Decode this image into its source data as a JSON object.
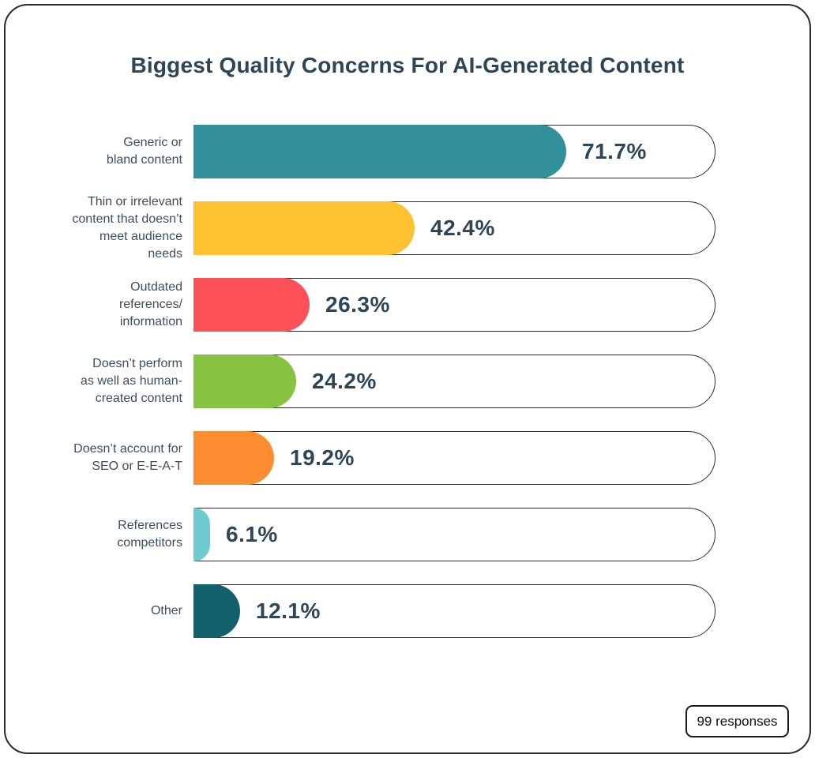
{
  "chart_data": {
    "type": "bar",
    "orientation": "horizontal",
    "title": "Biggest Quality Concerns For AI-Generated Content",
    "xlim": [
      0,
      100
    ],
    "grid": false,
    "legend": false,
    "annotation": "99 responses",
    "categories": [
      "Generic or bland content",
      "Thin or irrelevant content that doesn’t meet audience needs",
      "Outdated references/information",
      "Doesn’t perform as well as human-created content",
      "Doesn’t account for SEO or E-E-A-T",
      "References competitors",
      "Other"
    ],
    "values": [
      71.7,
      42.4,
      26.3,
      24.2,
      19.2,
      6.1,
      12.1
    ],
    "rows": [
      {
        "label": "Generic or bland content",
        "display_label": "Generic or\nbland content",
        "value": 71.7,
        "value_label": "71.7%",
        "color": "#31909a",
        "fill_fraction": 0.714
      },
      {
        "label": "Thin or irrelevant content that doesn’t meet audience needs",
        "display_label": "Thin or irrelevant\ncontent that doesn’t\nmeet audience\nneeds",
        "value": 42.4,
        "value_label": "42.4%",
        "color": "#fec12f",
        "fill_fraction": 0.424
      },
      {
        "label": "Outdated references/information",
        "display_label": "Outdated\nreferences/\ninformation",
        "value": 26.3,
        "value_label": "26.3%",
        "color": "#fc5059",
        "fill_fraction": 0.222
      },
      {
        "label": "Doesn’t perform as well as human-created content",
        "display_label": "Doesn’t perform\nas well as human-\ncreated content",
        "value": 24.2,
        "value_label": "24.2%",
        "color": "#85c340",
        "fill_fraction": 0.197
      },
      {
        "label": "Doesn’t account for SEO or E-E-A-T",
        "display_label": "Doesn’t account for\nSEO or E-E-A-T",
        "value": 19.2,
        "value_label": "19.2%",
        "color": "#fb8d30",
        "fill_fraction": 0.154
      },
      {
        "label": "References competitors",
        "display_label": "References\ncompetitors",
        "value": 6.1,
        "value_label": "6.1%",
        "color": "#70cbd1",
        "fill_fraction": 0.032
      },
      {
        "label": "Other",
        "display_label": "Other",
        "value": 12.1,
        "value_label": "12.1%",
        "color": "#12606b",
        "fill_fraction": 0.089
      }
    ],
    "palette": {
      "text_dark": "#2e4557",
      "label_text": "#3d4e5e",
      "track_outline": "#2d2d2d",
      "card_outline": "#2a2a2a",
      "background": "#ffffff"
    }
  },
  "footer": {
    "responses_label": "99 responses"
  }
}
